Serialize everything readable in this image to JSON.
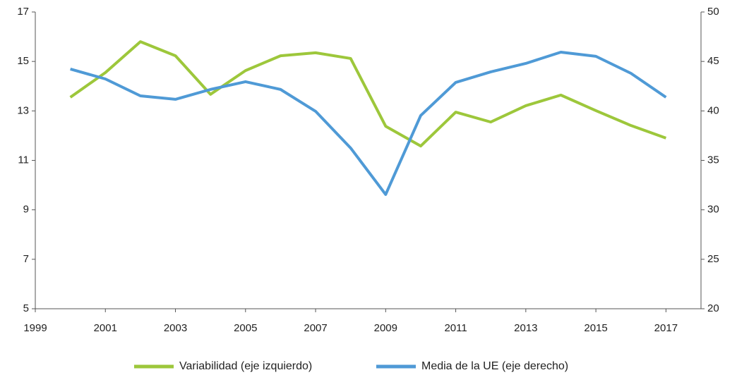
{
  "chart_data": {
    "type": "line",
    "x": [
      2000,
      2001,
      2002,
      2003,
      2004,
      2005,
      2006,
      2007,
      2008,
      2009,
      2010,
      2011,
      2012,
      2013,
      2014,
      2015,
      2016,
      2017
    ],
    "series": [
      {
        "name": "Variabilidad (eje izquierdo)",
        "color": "#9dc73b",
        "values": [
          13.55,
          14.55,
          15.8,
          15.23,
          13.67,
          14.63,
          15.23,
          15.35,
          15.12,
          12.38,
          11.58,
          12.95,
          12.55,
          13.21,
          13.64,
          13.01,
          12.41,
          11.9
        ]
      },
      {
        "name": "Media de la UE (eje derecho)",
        "color": "#4f9ad6",
        "axis": "y2",
        "values": [
          44.23,
          43.23,
          41.52,
          41.17,
          42.17,
          42.95,
          42.17,
          39.96,
          36.25,
          31.55,
          39.53,
          42.88,
          43.95,
          44.8,
          45.94,
          45.52,
          43.8,
          41.38
        ]
      }
    ],
    "xlim": [
      1999,
      2018
    ],
    "xticks": [
      1999,
      2001,
      2003,
      2005,
      2007,
      2009,
      2011,
      2013,
      2015,
      2017
    ],
    "ylim": [
      5,
      17
    ],
    "yticks": [
      5,
      7,
      9,
      11,
      13,
      15,
      17
    ],
    "y2lim": [
      20,
      50
    ],
    "y2ticks": [
      20,
      25,
      30,
      35,
      40,
      45,
      50
    ],
    "legend": "bottom",
    "grid": false
  }
}
